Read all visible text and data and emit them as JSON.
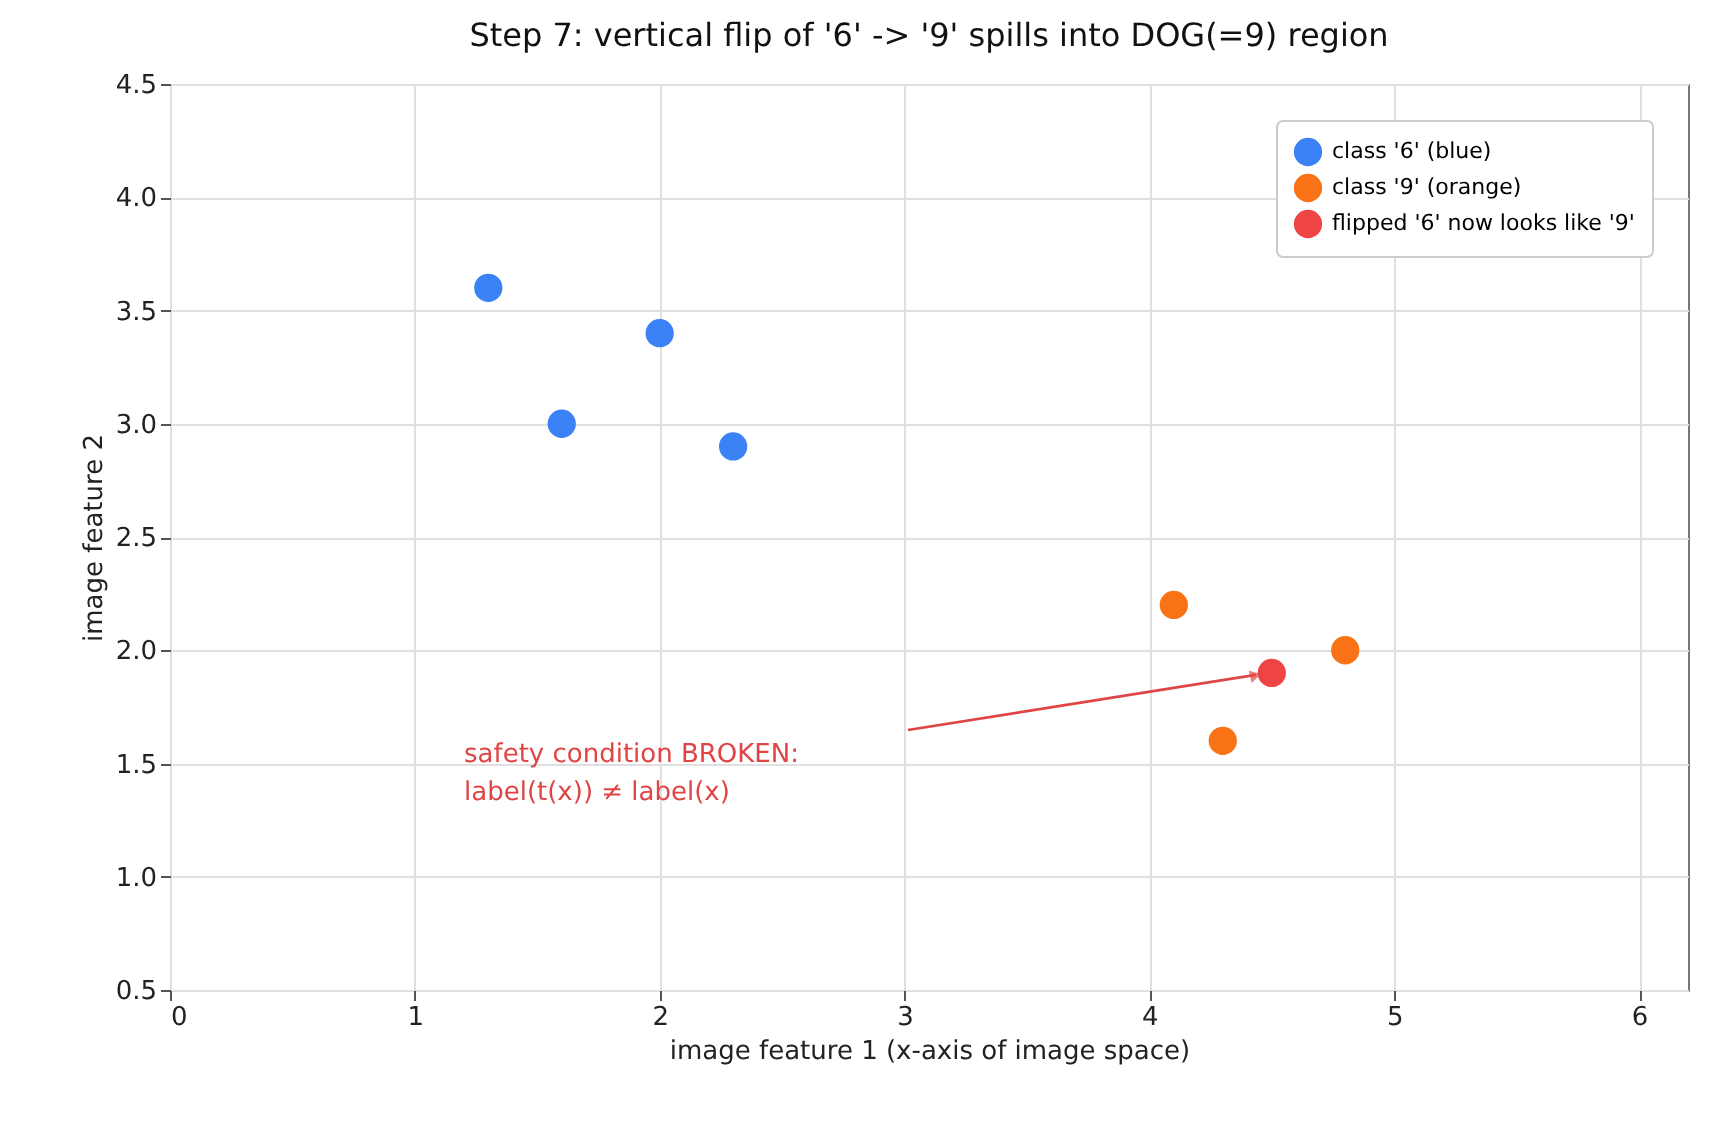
{
  "chart_data": {
    "type": "scatter",
    "title": "Step 7: vertical flip of '6' -> '9' spills into DOG(=9) region",
    "xlabel": "image feature 1  (x-axis of image space)",
    "ylabel": "image feature 2",
    "xlim": [
      0,
      6.2
    ],
    "xticks": [
      0,
      1,
      2,
      3,
      4,
      5,
      6
    ],
    "ylim": [
      0.5,
      4.5
    ],
    "yticks": [
      {
        "value": 0.5,
        "label": "0.5"
      },
      {
        "value": 1,
        "label": "1.0"
      },
      {
        "value": 1.5,
        "label": "1.5"
      },
      {
        "value": 2,
        "label": "2.0"
      },
      {
        "value": 2.5,
        "label": "2.5"
      },
      {
        "value": 3,
        "label": "3.0"
      },
      {
        "value": 3.5,
        "label": "3.5"
      },
      {
        "value": 4,
        "label": "4.0"
      },
      {
        "value": 4.5,
        "label": "4.5"
      }
    ],
    "grid": true,
    "legend": "top right",
    "marker": "circle",
    "series": [
      {
        "name": "class '6' (blue)",
        "color": "#3b82f6",
        "x": [
          1.3,
          1.6,
          2.0,
          2.3
        ],
        "values": [
          3.6,
          3.0,
          3.4,
          2.9
        ]
      },
      {
        "name": "class '9' (orange)",
        "color": "#f97316",
        "x": [
          4.1,
          4.3,
          4.8
        ],
        "values": [
          2.2,
          1.6,
          2.0
        ]
      },
      {
        "name": "flipped '6' now looks like '9'",
        "color": "#ef4444",
        "x": [
          4.5
        ],
        "values": [
          1.9
        ]
      }
    ],
    "annotations": [
      "safety condition BROKEN:\nlabel(t(x)) ≠ label(x)"
    ]
  }
}
